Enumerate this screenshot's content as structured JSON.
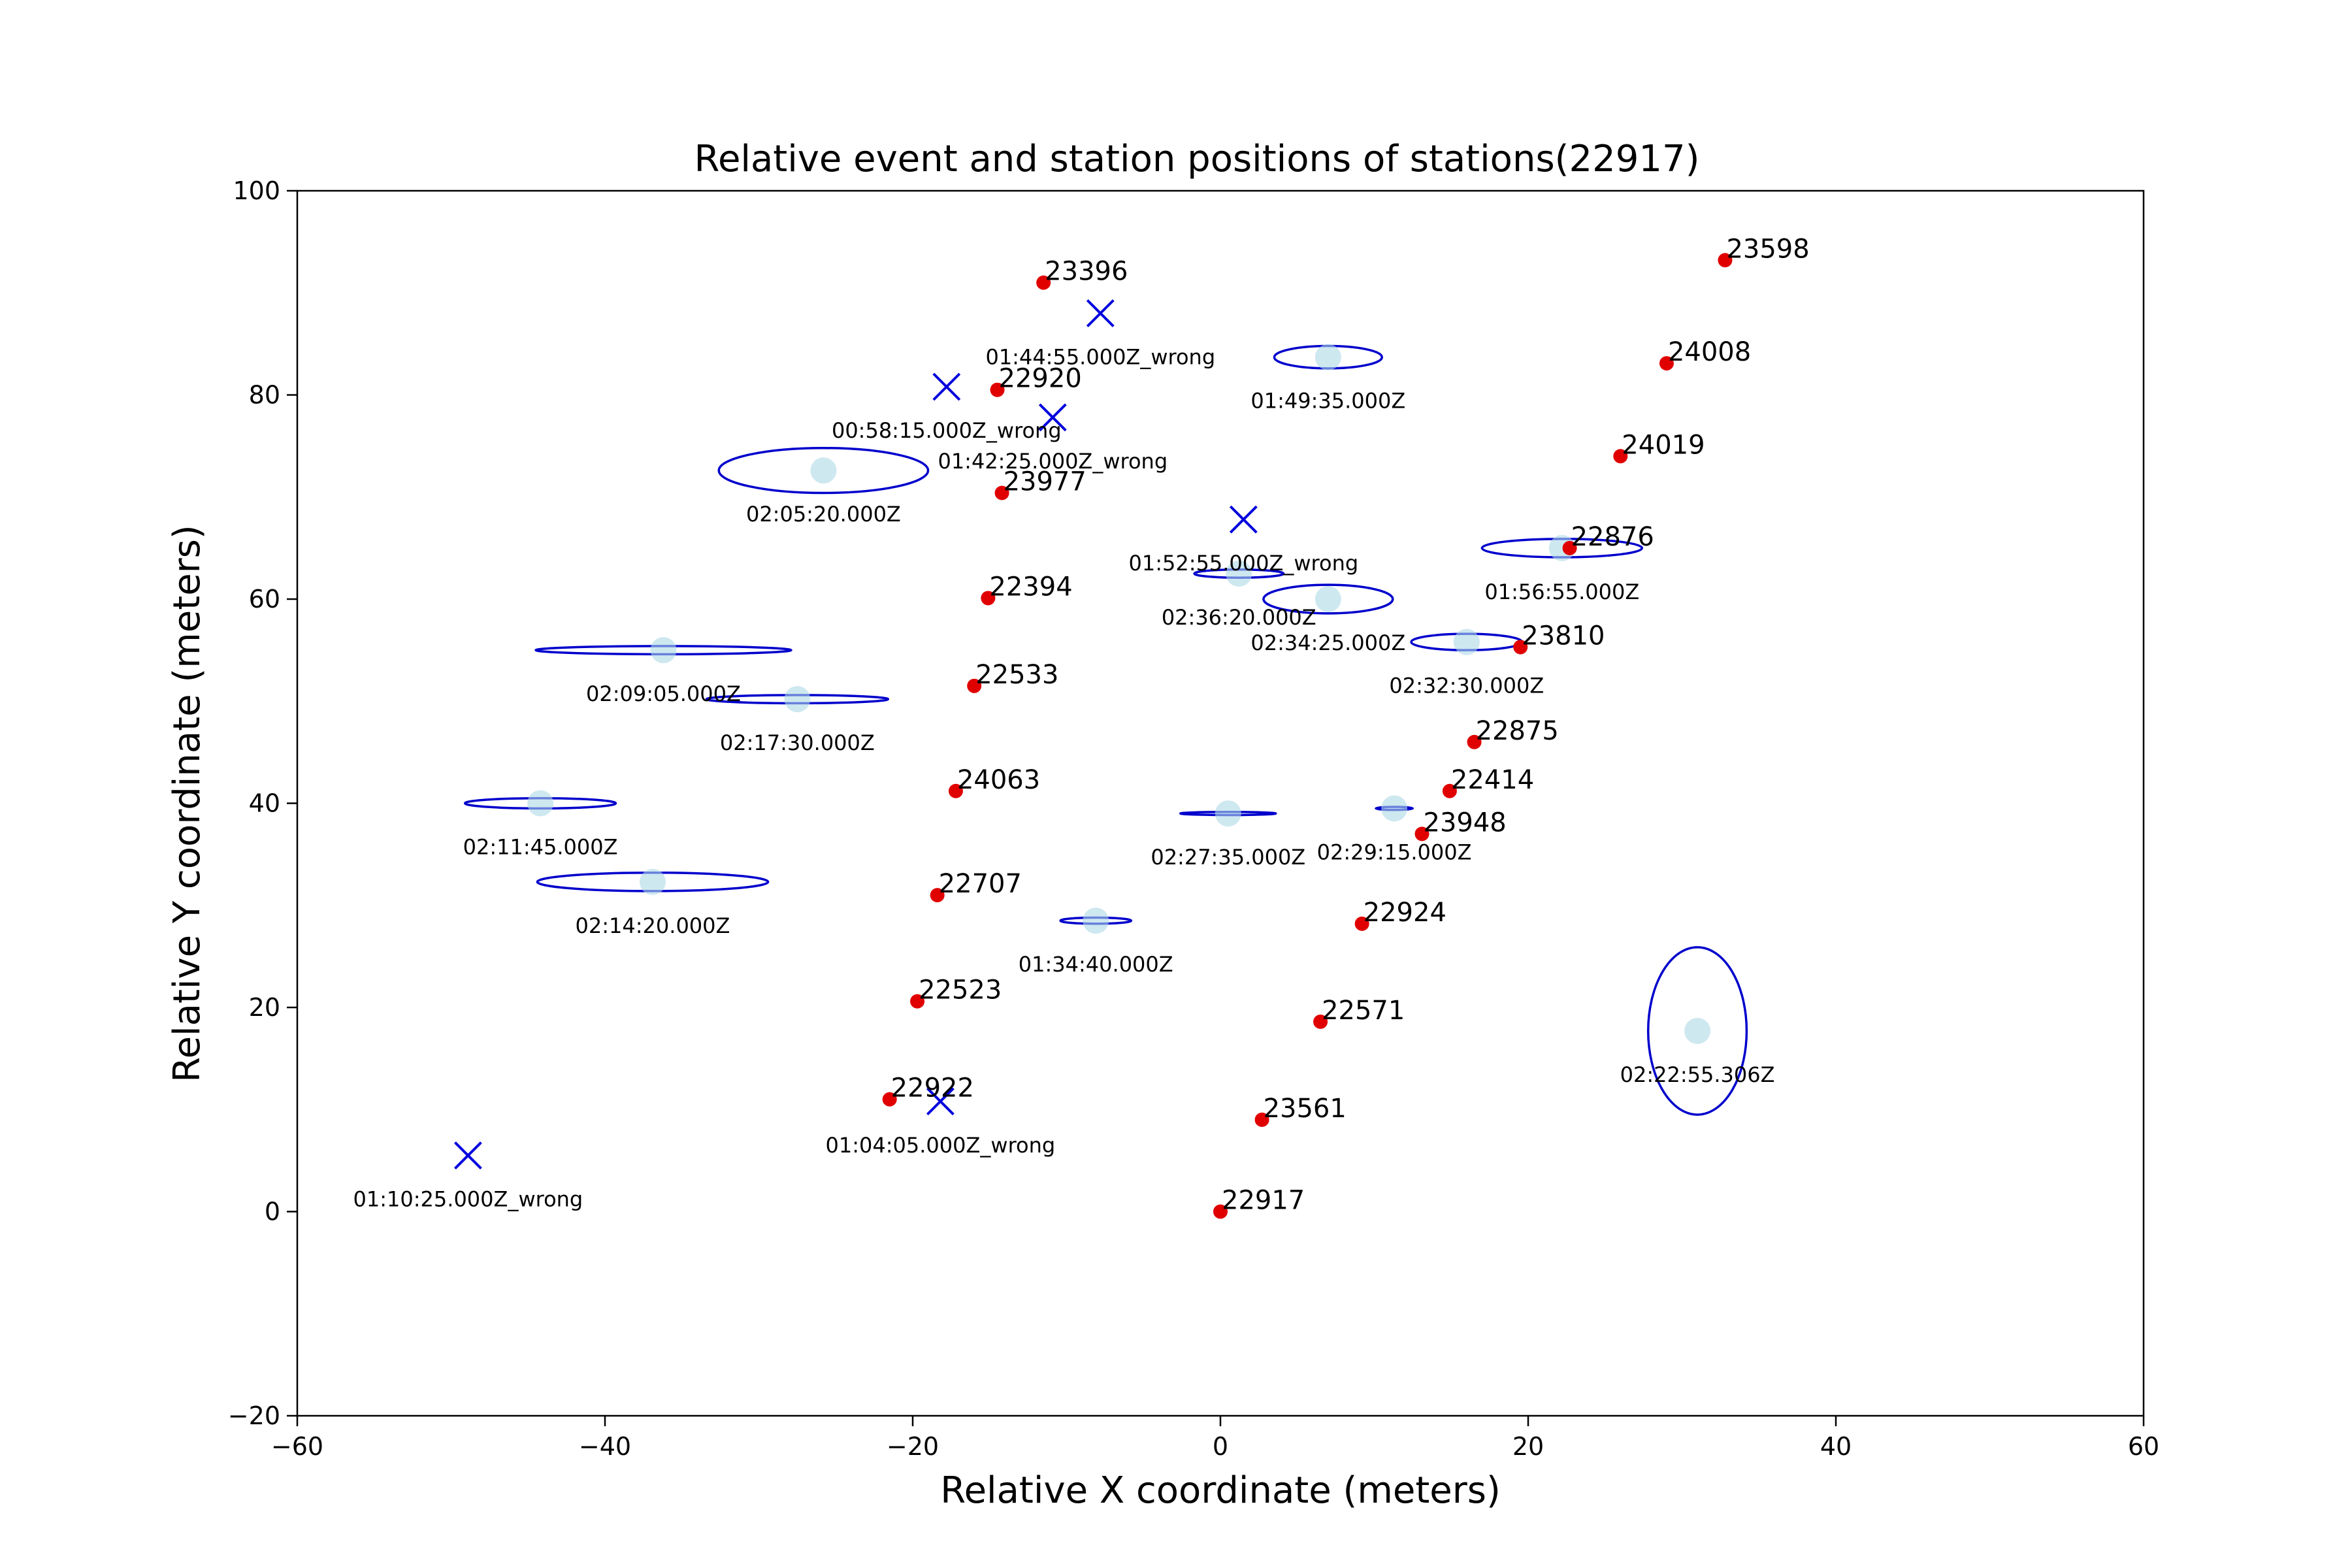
{
  "chart_data": {
    "type": "scatter",
    "title": "Relative event and station positions of stations(22917)",
    "xlabel": "Relative X coordinate (meters)",
    "ylabel": "Relative Y coordinate (meters)",
    "xlim": [
      -60,
      60
    ],
    "ylim": [
      -20,
      100
    ],
    "xticks": [
      -60,
      -40,
      -20,
      0,
      20,
      40,
      60
    ],
    "yticks": [
      -20,
      0,
      20,
      40,
      60,
      80,
      100
    ],
    "xtick_labels": [
      "−60",
      "−40",
      "−20",
      "0",
      "20",
      "40",
      "60"
    ],
    "ytick_labels": [
      "−20",
      "0",
      "20",
      "40",
      "60",
      "80",
      "100"
    ],
    "grid": false,
    "colors": {
      "station": "#e00000",
      "event_fill": "#add8e6",
      "ellipse": "#0000cc",
      "wrong_marker": "#0000dd"
    },
    "stations": [
      {
        "label": "22917",
        "x": 0.0,
        "y": 0.0
      },
      {
        "label": "23396",
        "x": -11.5,
        "y": 91.0
      },
      {
        "label": "23598",
        "x": 32.8,
        "y": 93.2
      },
      {
        "label": "24008",
        "x": 29.0,
        "y": 83.1
      },
      {
        "label": "24019",
        "x": 26.0,
        "y": 74.0
      },
      {
        "label": "22920",
        "x": -14.5,
        "y": 80.5
      },
      {
        "label": "23977",
        "x": -14.2,
        "y": 70.4
      },
      {
        "label": "22876",
        "x": 22.7,
        "y": 65.0
      },
      {
        "label": "22394",
        "x": -15.1,
        "y": 60.1
      },
      {
        "label": "23810",
        "x": 19.5,
        "y": 55.3
      },
      {
        "label": "22533",
        "x": -16.0,
        "y": 51.5
      },
      {
        "label": "22875",
        "x": 16.5,
        "y": 46.0
      },
      {
        "label": "24063",
        "x": -17.2,
        "y": 41.2
      },
      {
        "label": "22414",
        "x": 14.9,
        "y": 41.2
      },
      {
        "label": "23948",
        "x": 13.1,
        "y": 37.0
      },
      {
        "label": "22707",
        "x": -18.4,
        "y": 31.0
      },
      {
        "label": "22924",
        "x": 9.2,
        "y": 28.2
      },
      {
        "label": "22523",
        "x": -19.7,
        "y": 20.6
      },
      {
        "label": "22571",
        "x": 6.5,
        "y": 18.6
      },
      {
        "label": "22922",
        "x": -21.5,
        "y": 11.0
      },
      {
        "label": "23561",
        "x": 2.7,
        "y": 9.0
      }
    ],
    "events": [
      {
        "label": "01:49:35.000Z",
        "x": 7.0,
        "y": 83.7,
        "rx": 3.5,
        "ry": 1.1
      },
      {
        "label": "02:05:20.000Z",
        "x": -25.8,
        "y": 72.6,
        "rx": 6.8,
        "ry": 2.2
      },
      {
        "label": "01:56:55.000Z",
        "x": 22.2,
        "y": 65.0,
        "rx": 5.2,
        "ry": 0.9
      },
      {
        "label": "02:36:20.000Z",
        "x": 1.2,
        "y": 62.5,
        "rx": 2.9,
        "ry": 0.4
      },
      {
        "label": "02:34:25.000Z",
        "x": 7.0,
        "y": 60.0,
        "rx": 4.2,
        "ry": 1.4
      },
      {
        "label": "02:32:30.000Z",
        "x": 16.0,
        "y": 55.8,
        "rx": 3.6,
        "ry": 0.8
      },
      {
        "label": "02:09:05.000Z",
        "x": -36.2,
        "y": 55.0,
        "rx": 8.3,
        "ry": 0.4
      },
      {
        "label": "02:17:30.000Z",
        "x": -27.5,
        "y": 50.2,
        "rx": 5.9,
        "ry": 0.4
      },
      {
        "label": "02:11:45.000Z",
        "x": -44.2,
        "y": 40.0,
        "rx": 4.9,
        "ry": 0.5
      },
      {
        "label": "02:27:35.000Z",
        "x": 0.5,
        "y": 39.0,
        "rx": 3.1,
        "ry": 0.15
      },
      {
        "label": "02:29:15.000Z",
        "x": 11.3,
        "y": 39.5,
        "rx": 1.2,
        "ry": 0.15
      },
      {
        "label": "02:14:20.000Z",
        "x": -36.9,
        "y": 32.3,
        "rx": 7.5,
        "ry": 0.9
      },
      {
        "label": "01:34:40.000Z",
        "x": -8.1,
        "y": 28.5,
        "rx": 2.3,
        "ry": 0.3
      },
      {
        "label": "02:22:55.306Z",
        "x": 31.0,
        "y": 17.7,
        "rx": 3.2,
        "ry": 8.2
      }
    ],
    "wrong_events": [
      {
        "label": "01:44:55.000Z_wrong",
        "x": -7.8,
        "y": 88.0
      },
      {
        "label": "00:58:15.000Z_wrong",
        "x": -17.8,
        "y": 80.8
      },
      {
        "label": "01:42:25.000Z_wrong",
        "x": -10.9,
        "y": 77.8
      },
      {
        "label": "01:52:55.000Z_wrong",
        "x": 1.5,
        "y": 67.8
      },
      {
        "label": "01:04:05.000Z_wrong",
        "x": -18.2,
        "y": 10.8
      },
      {
        "label": "01:10:25.000Z_wrong",
        "x": -48.9,
        "y": 5.5
      }
    ]
  }
}
